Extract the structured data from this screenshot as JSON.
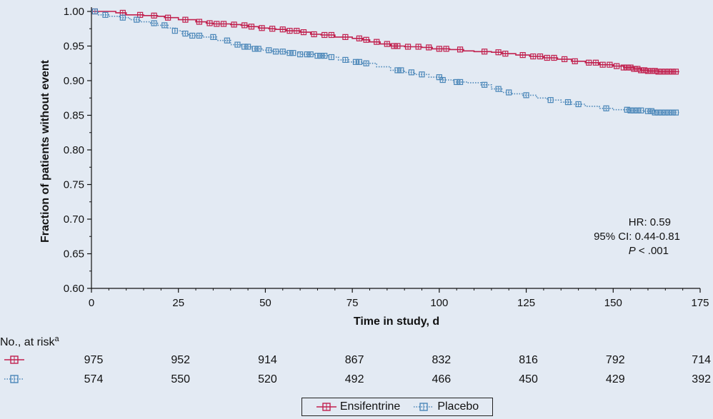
{
  "chart_data": {
    "type": "line",
    "subtype": "kaplan-meier",
    "xlabel": "Time in study, d",
    "ylabel": "Fraction of patients without event",
    "xlim": [
      0,
      175
    ],
    "ylim": [
      0.6,
      1.0
    ],
    "x_ticks": [
      "0",
      "25",
      "50",
      "75",
      "100",
      "125",
      "150",
      "175"
    ],
    "y_ticks": [
      "1.00",
      "0.95",
      "0.90",
      "0.85",
      "0.80",
      "0.75",
      "0.70",
      "0.65",
      "0.60"
    ],
    "grid": false,
    "series": [
      {
        "name": "Ensifentrine",
        "color": "#c1204e",
        "line_style": "solid",
        "points": [
          [
            0,
            1.0
          ],
          [
            7,
            0.998
          ],
          [
            10,
            0.995
          ],
          [
            15,
            0.994
          ],
          [
            19,
            0.993
          ],
          [
            21,
            0.991
          ],
          [
            25,
            0.988
          ],
          [
            30,
            0.985
          ],
          [
            33,
            0.983
          ],
          [
            35,
            0.982
          ],
          [
            40,
            0.981
          ],
          [
            43,
            0.98
          ],
          [
            45,
            0.978
          ],
          [
            48,
            0.976
          ],
          [
            51,
            0.975
          ],
          [
            53,
            0.974
          ],
          [
            56,
            0.972
          ],
          [
            60,
            0.97
          ],
          [
            63,
            0.967
          ],
          [
            66,
            0.966
          ],
          [
            70,
            0.963
          ],
          [
            75,
            0.961
          ],
          [
            78,
            0.959
          ],
          [
            80,
            0.956
          ],
          [
            83,
            0.953
          ],
          [
            86,
            0.95
          ],
          [
            90,
            0.949
          ],
          [
            95,
            0.948
          ],
          [
            98,
            0.946
          ],
          [
            103,
            0.945
          ],
          [
            107,
            0.943
          ],
          [
            110,
            0.942
          ],
          [
            115,
            0.941
          ],
          [
            118,
            0.939
          ],
          [
            122,
            0.937
          ],
          [
            126,
            0.935
          ],
          [
            130,
            0.933
          ],
          [
            134,
            0.931
          ],
          [
            138,
            0.928
          ],
          [
            142,
            0.926
          ],
          [
            146,
            0.923
          ],
          [
            150,
            0.921
          ],
          [
            153,
            0.919
          ],
          [
            156,
            0.917
          ],
          [
            158,
            0.915
          ],
          [
            160,
            0.914
          ],
          [
            163,
            0.913
          ],
          [
            169,
            0.913
          ]
        ],
        "censor_x": [
          1,
          9,
          14,
          18,
          22,
          27,
          31,
          34,
          36,
          38,
          41,
          44,
          46,
          49,
          52,
          55,
          57,
          59,
          61,
          64,
          67,
          69,
          73,
          77,
          79,
          82,
          85,
          87,
          88,
          91,
          94,
          97,
          100,
          102,
          106,
          113,
          117,
          119,
          124,
          127,
          129,
          131,
          133,
          136,
          139,
          143,
          145,
          147,
          149,
          151,
          153,
          154,
          155,
          156,
          157,
          158,
          159,
          160,
          161,
          162,
          163,
          164,
          165,
          166,
          167,
          168
        ]
      },
      {
        "name": "Placebo",
        "color": "#4a86b8",
        "line_style": "dotted",
        "points": [
          [
            0,
            1.0
          ],
          [
            2,
            0.995
          ],
          [
            5,
            0.993
          ],
          [
            8,
            0.991
          ],
          [
            11,
            0.988
          ],
          [
            14,
            0.985
          ],
          [
            17,
            0.983
          ],
          [
            19,
            0.98
          ],
          [
            22,
            0.976
          ],
          [
            24,
            0.972
          ],
          [
            26,
            0.968
          ],
          [
            28,
            0.965
          ],
          [
            32,
            0.963
          ],
          [
            36,
            0.958
          ],
          [
            40,
            0.952
          ],
          [
            43,
            0.949
          ],
          [
            46,
            0.946
          ],
          [
            49,
            0.944
          ],
          [
            52,
            0.942
          ],
          [
            56,
            0.94
          ],
          [
            60,
            0.938
          ],
          [
            64,
            0.936
          ],
          [
            68,
            0.934
          ],
          [
            71,
            0.93
          ],
          [
            74,
            0.927
          ],
          [
            78,
            0.925
          ],
          [
            82,
            0.92
          ],
          [
            86,
            0.915
          ],
          [
            90,
            0.912
          ],
          [
            93,
            0.909
          ],
          [
            97,
            0.905
          ],
          [
            101,
            0.901
          ],
          [
            104,
            0.898
          ],
          [
            108,
            0.897
          ],
          [
            112,
            0.894
          ],
          [
            115,
            0.888
          ],
          [
            118,
            0.883
          ],
          [
            121,
            0.881
          ],
          [
            124,
            0.879
          ],
          [
            128,
            0.875
          ],
          [
            131,
            0.872
          ],
          [
            135,
            0.869
          ],
          [
            138,
            0.866
          ],
          [
            142,
            0.863
          ],
          [
            146,
            0.86
          ],
          [
            150,
            0.858
          ],
          [
            155,
            0.857
          ],
          [
            159,
            0.856
          ],
          [
            162,
            0.854
          ],
          [
            169,
            0.853
          ]
        ],
        "censor_x": [
          1,
          4,
          9,
          13,
          18,
          21,
          24,
          27,
          29,
          31,
          35,
          39,
          42,
          44,
          45,
          47,
          48,
          51,
          53,
          55,
          57,
          58,
          60,
          62,
          63,
          65,
          66,
          67,
          69,
          73,
          76,
          77,
          79,
          88,
          89,
          92,
          95,
          100,
          101,
          105,
          106,
          113,
          117,
          120,
          125,
          132,
          137,
          140,
          148,
          154,
          155,
          156,
          157,
          158,
          160,
          161,
          162,
          163,
          164,
          165,
          166,
          167,
          168
        ]
      }
    ],
    "annotations": {
      "hr": "HR: 0.59",
      "ci": "95% CI: 0.44-0.81",
      "p_italic": "P",
      "p_rest": " < .001"
    },
    "at_risk": {
      "title": "No., at risk",
      "superscript": "a",
      "x": [
        0,
        25,
        50,
        75,
        100,
        125,
        150,
        175
      ],
      "rows": [
        {
          "series": "Ensifentrine",
          "values": [
            "975",
            "952",
            "914",
            "867",
            "832",
            "816",
            "792",
            "714"
          ]
        },
        {
          "series": "Placebo",
          "values": [
            "574",
            "550",
            "520",
            "492",
            "466",
            "450",
            "429",
            "392"
          ]
        }
      ]
    },
    "legend": {
      "position": "bottom-center",
      "items": [
        "Ensifentrine",
        "Placebo"
      ]
    }
  }
}
